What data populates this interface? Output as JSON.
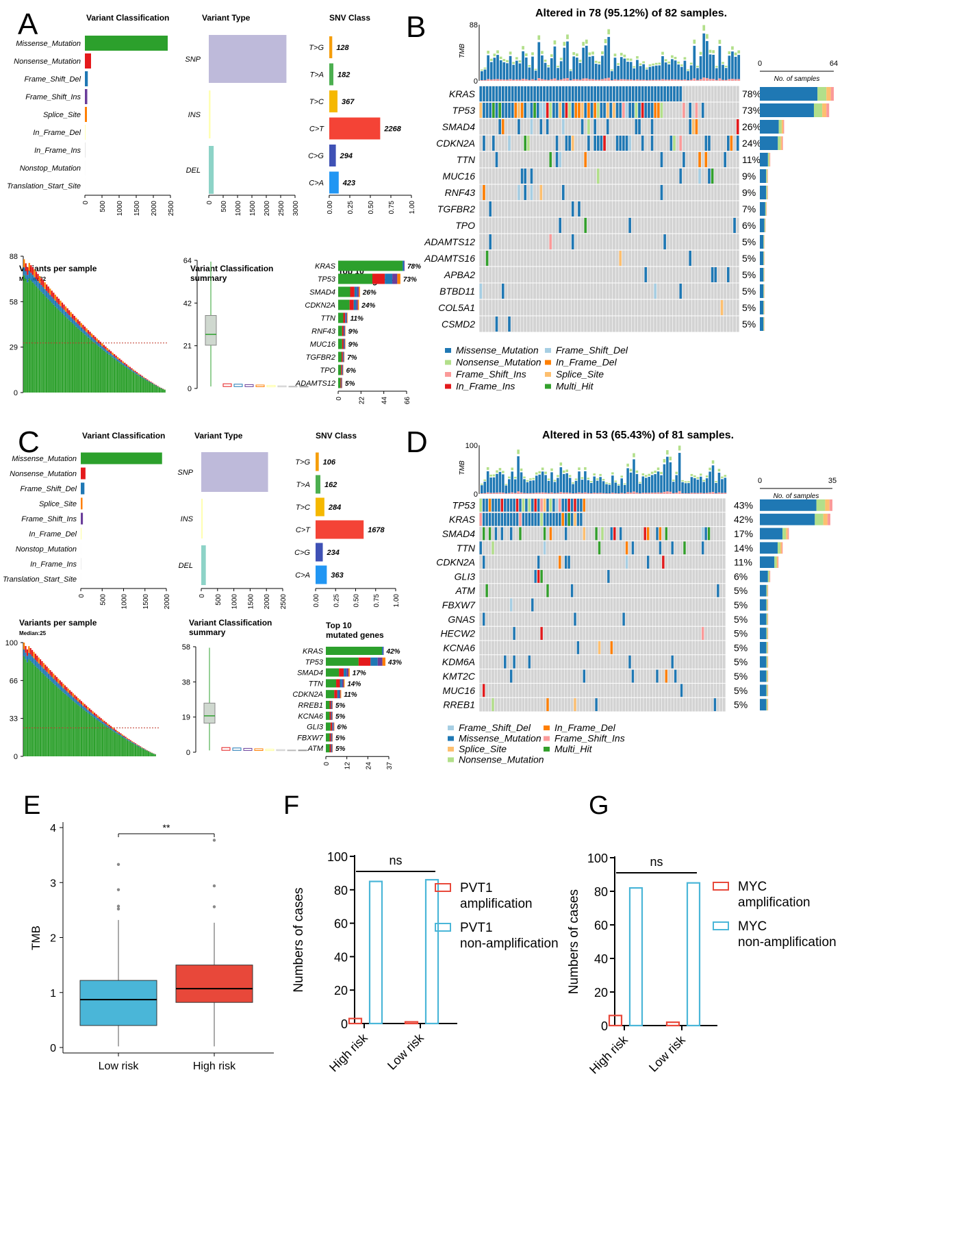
{
  "panels": {
    "A": "A",
    "B": "B",
    "C": "C",
    "D": "D",
    "E": "E",
    "F": "F",
    "G": "G"
  },
  "colors": {
    "missense": "#1f78b4",
    "nonsense": "#b2df8a",
    "fs_del": "#a6cee3",
    "fs_ins": "#fb9a99",
    "inf_del": "#ff7f00",
    "inf_ins": "#e31a1c",
    "splice": "#fdbf6f",
    "multi": "#33a02c",
    "vc_missense": "#2ca02c",
    "vc_nonsense": "#e41a1c",
    "vc_fsdel": "#1f78b4",
    "vc_fsins": "#6a3d9a",
    "vc_splice": "#ff7f00",
    "snp": "#bebada",
    "ins": "#ffffb3",
    "del": "#8dd3c7",
    "tg": "#f59e0b",
    "ta": "#4caf50",
    "tc": "#f5b800",
    "ct": "#f44336",
    "cg": "#3f51b5",
    "ca": "#2196f3",
    "grid": "#d3d3d3",
    "low": "#4ab6d8",
    "high": "#e8483a"
  },
  "chart_data": [
    {
      "id": "A",
      "type": "maf-summary",
      "variant_classification": {
        "title": "Variant Classification",
        "labels": [
          "Missense_Mutation",
          "Nonsense_Mutation",
          "Frame_Shift_Del",
          "Frame_Shift_Ins",
          "Splice_Site",
          "In_Frame_Del",
          "In_Frame_Ins",
          "Nonstop_Mutation",
          "Translation_Start_Site"
        ],
        "values": [
          2420,
          180,
          85,
          70,
          60,
          15,
          10,
          3,
          2
        ],
        "ticks": [
          "0",
          "500",
          "1000",
          "1500",
          "2000",
          "2500"
        ],
        "xmax": 2500
      },
      "variant_type": {
        "title": "Variant Type",
        "labels": [
          "SNP",
          "INS",
          "DEL"
        ],
        "values": [
          2700,
          60,
          170
        ],
        "ticks": [
          "0",
          "500",
          "1000",
          "1500",
          "2000",
          "2500",
          "3000"
        ],
        "xmax": 3000
      },
      "snv_class": {
        "title": "SNV Class",
        "labels": [
          "T>G",
          "T>A",
          "T>C",
          "C>T",
          "C>G",
          "C>A"
        ],
        "values": [
          128,
          182,
          367,
          2268,
          294,
          423
        ],
        "fractions": [
          0.036,
          0.05,
          0.1,
          0.62,
          0.08,
          0.115
        ],
        "ticks": [
          "0.00",
          "0.25",
          "0.50",
          "0.75",
          "1.00"
        ]
      },
      "variants_per_sample": {
        "title": "Variants per sample",
        "median_label": "Median:32",
        "median": 32,
        "yticks": [
          "0",
          "29",
          "58",
          "88"
        ],
        "ymax": 88,
        "n": 82,
        "max": 86
      },
      "summary": {
        "title": "Variant Classification",
        "title2": "summary",
        "yticks": [
          "0",
          "21",
          "42",
          "64"
        ],
        "ymax": 64
      },
      "top10": {
        "title": "Top 10",
        "title2": "mutated genes",
        "genes": [
          "KRAS",
          "TP53",
          "SMAD4",
          "CDKN2A",
          "TTN",
          "RNF43",
          "MUC16",
          "TGFBR2",
          "TPO",
          "ADAMTS12"
        ],
        "counts": [
          64,
          60,
          21,
          20,
          9,
          7,
          7,
          6,
          5,
          4
        ],
        "pct": [
          "78%",
          "73%",
          "26%",
          "24%",
          "11%",
          "9%",
          "9%",
          "7%",
          "6%",
          "5%"
        ],
        "ticks": [
          "0",
          "22",
          "44",
          "66"
        ],
        "xmax": 66
      }
    },
    {
      "id": "B",
      "type": "oncoplot",
      "title": "Altered in 78 (95.12%) of 82 samples.",
      "tmb_label": "TMB",
      "tmb_max": "88",
      "tmb_zero": "0",
      "n_samples": 82,
      "side_title": "No. of samples",
      "side_min": "0",
      "side_max": "64",
      "side_xmax": 64,
      "genes": [
        "KRAS",
        "TP53",
        "SMAD4",
        "CDKN2A",
        "TTN",
        "MUC16",
        "RNF43",
        "TGFBR2",
        "TPO",
        "ADAMTS12",
        "ADAMTS16",
        "APBA2",
        "BTBD11",
        "COL5A1",
        "CSMD2"
      ],
      "pct": [
        "78%",
        "73%",
        "26%",
        "24%",
        "11%",
        "9%",
        "9%",
        "7%",
        "6%",
        "5%",
        "5%",
        "5%",
        "5%",
        "5%",
        "5%"
      ],
      "counts": [
        64,
        60,
        21,
        20,
        9,
        7,
        7,
        6,
        5,
        4,
        4,
        4,
        4,
        4,
        4
      ],
      "legend": [
        "Missense_Mutation",
        "Frame_Shift_Del",
        "Nonsense_Mutation",
        "In_Frame_Del",
        "Frame_Shift_Ins",
        "Splice_Site",
        "In_Frame_Ins",
        "Multi_Hit"
      ],
      "legend_keys": [
        "missense",
        "fs_del",
        "nonsense",
        "inf_del",
        "fs_ins",
        "splice",
        "inf_ins",
        "multi"
      ]
    },
    {
      "id": "C",
      "type": "maf-summary",
      "variant_classification": {
        "title": "Variant Classification",
        "labels": [
          "Missense_Mutation",
          "Nonsense_Mutation",
          "Frame_Shift_Del",
          "Splice_Site",
          "Frame_Shift_Ins",
          "In_Frame_Del",
          "Nonstop_Mutation",
          "In_Frame_Ins",
          "Translation_Start_Site"
        ],
        "values": [
          1900,
          110,
          85,
          40,
          50,
          15,
          3,
          6,
          2
        ],
        "ticks": [
          "0",
          "500",
          "1000",
          "1500",
          "2000"
        ],
        "xmax": 2000
      },
      "variant_type": {
        "title": "Variant Type",
        "labels": [
          "SNP",
          "INS",
          "DEL"
        ],
        "values": [
          2050,
          45,
          140
        ],
        "ticks": [
          "0",
          "500",
          "1000",
          "1500",
          "2000",
          "2500"
        ],
        "xmax": 2500
      },
      "snv_class": {
        "title": "SNV Class",
        "labels": [
          "T>G",
          "T>A",
          "T>C",
          "C>T",
          "C>G",
          "C>A"
        ],
        "values": [
          106,
          162,
          284,
          1678,
          234,
          363
        ],
        "fractions": [
          0.04,
          0.06,
          0.11,
          0.6,
          0.09,
          0.14
        ],
        "ticks": [
          "0.00",
          "0.25",
          "0.50",
          "0.75",
          "1.00"
        ]
      },
      "variants_per_sample": {
        "title": "Variants per sample",
        "median_label": "Median:25",
        "median": 25,
        "yticks": [
          "0",
          "33",
          "66",
          "100"
        ],
        "ymax": 100,
        "n": 81,
        "max": 100
      },
      "summary": {
        "title": "Variant Classification",
        "title2": "summary",
        "yticks": [
          "0",
          "19",
          "38",
          "58"
        ],
        "ymax": 58
      },
      "top10": {
        "title": "Top 10",
        "title2": "mutated genes",
        "genes": [
          "KRAS",
          "TP53",
          "SMAD4",
          "TTN",
          "CDKN2A",
          "RREB1",
          "KCNA6",
          "GLI3",
          "FBXW7",
          "ATM"
        ],
        "counts": [
          34,
          35,
          14,
          11,
          9,
          4,
          4,
          5,
          4,
          4
        ],
        "pct": [
          "42%",
          "43%",
          "17%",
          "14%",
          "11%",
          "5%",
          "5%",
          "6%",
          "5%",
          "5%"
        ],
        "ticks": [
          "0",
          "12",
          "24",
          "37"
        ],
        "xmax": 37
      }
    },
    {
      "id": "D",
      "type": "oncoplot",
      "title": "Altered in 53 (65.43%) of 81 samples.",
      "tmb_label": "TMB",
      "tmb_max": "100",
      "tmb_zero": "0",
      "n_samples": 81,
      "side_title": "No. of samples",
      "side_min": "0",
      "side_max": "35",
      "side_xmax": 35,
      "genes": [
        "TP53",
        "KRAS",
        "SMAD4",
        "TTN",
        "CDKN2A",
        "GLI3",
        "ATM",
        "FBXW7",
        "GNAS",
        "HECW2",
        "KCNA6",
        "KDM6A",
        "KMT2C",
        "MUC16",
        "RREB1"
      ],
      "pct": [
        "43%",
        "42%",
        "17%",
        "14%",
        "11%",
        "6%",
        "5%",
        "5%",
        "5%",
        "5%",
        "5%",
        "5%",
        "5%",
        "5%",
        "5%"
      ],
      "counts": [
        35,
        34,
        14,
        11,
        9,
        5,
        4,
        4,
        4,
        4,
        4,
        4,
        4,
        4,
        4
      ],
      "legend": [
        "Frame_Shift_Del",
        "In_Frame_Del",
        "Missense_Mutation",
        "Frame_Shift_Ins",
        "Splice_Site",
        "Multi_Hit",
        "Nonsense_Mutation"
      ],
      "legend_keys": [
        "fs_del",
        "inf_del",
        "missense",
        "fs_ins",
        "splice",
        "multi",
        "nonsense"
      ]
    },
    {
      "id": "E",
      "type": "boxplot",
      "ylabel": "TMB",
      "yticks": [
        "0",
        "1",
        "2",
        "3",
        "4"
      ],
      "ylim": [
        0,
        4
      ],
      "categories": [
        "Low risk",
        "High risk"
      ],
      "boxes": [
        {
          "name": "Low risk",
          "q1": 0.4,
          "median": 0.87,
          "q3": 1.22,
          "whisker_low": 0.02,
          "whisker_high": 2.32,
          "outliers": [
            2.52,
            2.57,
            2.87,
            3.33
          ]
        },
        {
          "name": "High risk",
          "q1": 0.82,
          "median": 1.07,
          "q3": 1.5,
          "whisker_low": 0.02,
          "whisker_high": 2.27,
          "outliers": [
            2.56,
            2.94,
            3.77
          ]
        }
      ],
      "significance": "**"
    },
    {
      "id": "F",
      "type": "bar",
      "ylabel": "Numbers of cases",
      "yticks": [
        "0",
        "20",
        "40",
        "60",
        "80",
        "100"
      ],
      "ylim": [
        0,
        100
      ],
      "categories": [
        "High risk",
        "Low risk"
      ],
      "series": [
        {
          "name": "PVT1 amplification",
          "legend1": "PVT1",
          "legend2": "amplification",
          "values": [
            3,
            1
          ]
        },
        {
          "name": "PVT1 non-amplification",
          "legend1": "PVT1",
          "legend2": "non-amplification",
          "values": [
            85,
            86
          ]
        }
      ],
      "significance": "ns"
    },
    {
      "id": "G",
      "type": "bar",
      "ylabel": "Numbers of cases",
      "yticks": [
        "0",
        "20",
        "40",
        "60",
        "80",
        "100"
      ],
      "ylim": [
        0,
        100
      ],
      "categories": [
        "High risk",
        "Low risk"
      ],
      "series": [
        {
          "name": "MYC amplification",
          "legend1": "MYC",
          "legend2": "amplification",
          "values": [
            6,
            2
          ]
        },
        {
          "name": "MYC non-amplification",
          "legend1": "MYC",
          "legend2": "non-amplification",
          "values": [
            82,
            85
          ]
        }
      ],
      "significance": "ns"
    }
  ]
}
